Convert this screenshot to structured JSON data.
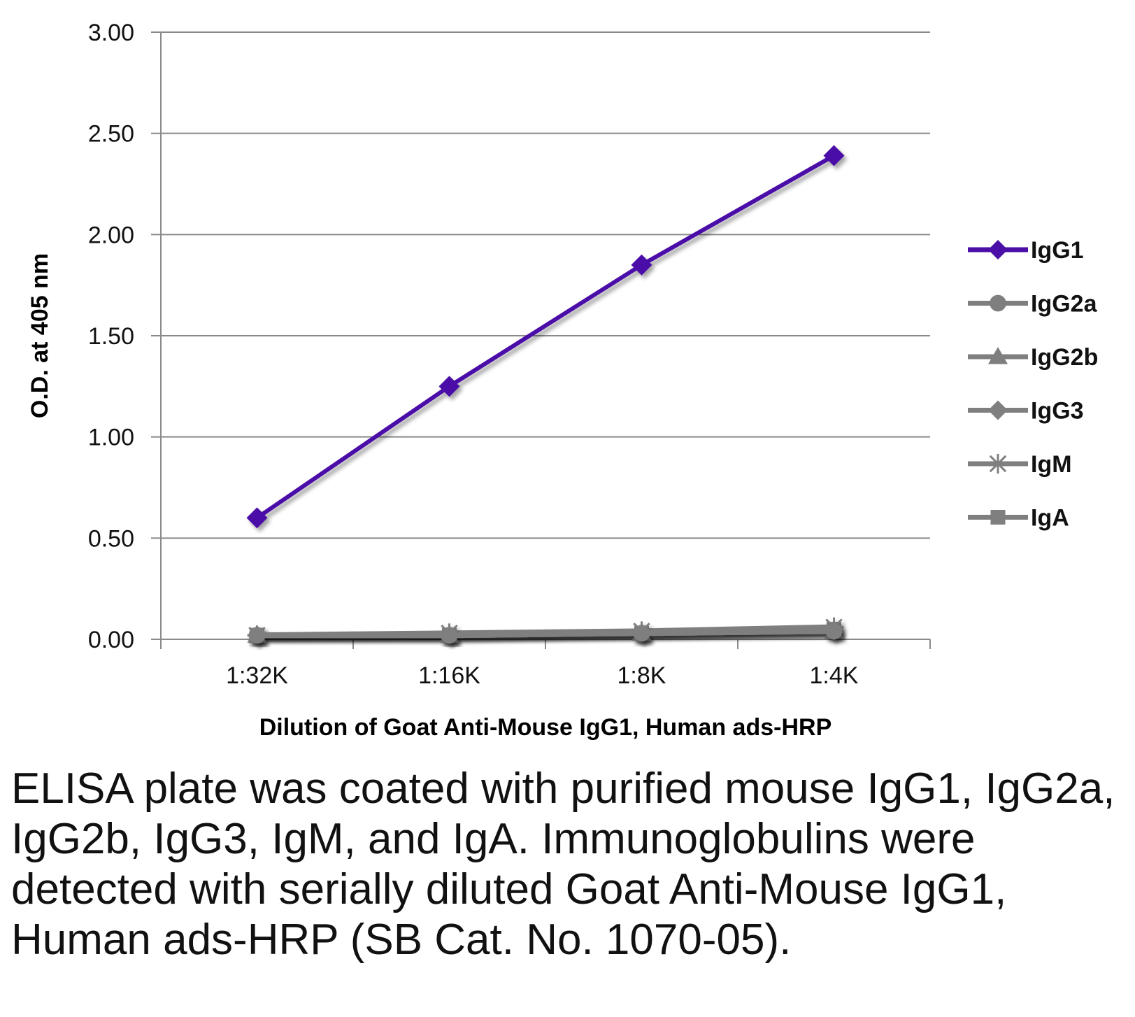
{
  "chart_data": {
    "type": "line",
    "title": "",
    "xlabel": "Dilution of Goat Anti-Mouse IgG1, Human ads-HRP",
    "ylabel": "O.D. at 405 nm",
    "categories": [
      "1:32K",
      "1:16K",
      "1:8K",
      "1:4K"
    ],
    "ylim": [
      0,
      3
    ],
    "yticks": [
      "0.00",
      "0.50",
      "1.00",
      "1.50",
      "2.00",
      "2.50",
      "3.00"
    ],
    "grid": "horizontal",
    "legend_position": "right",
    "series": [
      {
        "name": "IgG1",
        "values": [
          0.6,
          1.25,
          1.85,
          2.39
        ],
        "color": "#4b0fa8",
        "marker": "diamond"
      },
      {
        "name": "IgG2a",
        "values": [
          0.02,
          0.02,
          0.03,
          0.04
        ],
        "color": "#7f7f7f",
        "marker": "circle"
      },
      {
        "name": "IgG2b",
        "values": [
          0.02,
          0.02,
          0.03,
          0.04
        ],
        "color": "#7f7f7f",
        "marker": "triangle"
      },
      {
        "name": "IgG3",
        "values": [
          0.02,
          0.02,
          0.03,
          0.04
        ],
        "color": "#7f7f7f",
        "marker": "diamond"
      },
      {
        "name": "IgM",
        "values": [
          0.02,
          0.03,
          0.04,
          0.06
        ],
        "color": "#7f7f7f",
        "marker": "star"
      },
      {
        "name": "IgA",
        "values": [
          0.02,
          0.02,
          0.03,
          0.05
        ],
        "color": "#7f7f7f",
        "marker": "square"
      }
    ]
  },
  "caption": "ELISA plate was coated with purified mouse IgG1, IgG2a, IgG2b, IgG3, IgM, and IgA. Immunoglobulins were detected with serially diluted Goat Anti-Mouse IgG1, Human ads-HRP (SB Cat. No. 1070-05)."
}
